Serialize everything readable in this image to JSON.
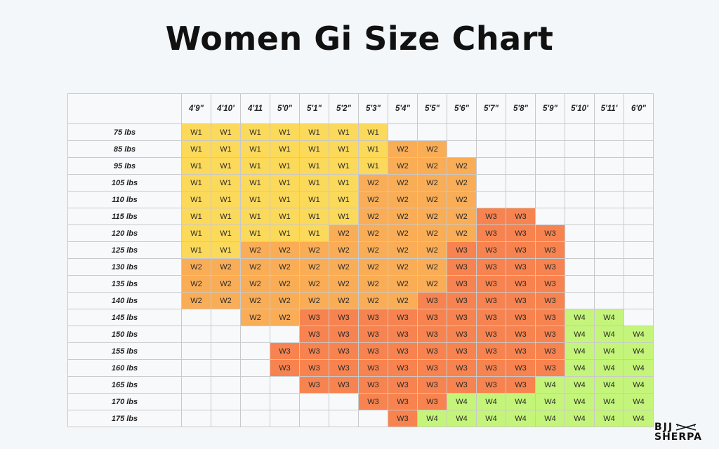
{
  "title": "Women Gi Size Chart",
  "logo": {
    "line1": "BJJ",
    "line2": "SHERPA"
  },
  "colors": {
    "W1": "#fbd95a",
    "W2": "#f9ad57",
    "W3": "#f78450",
    "W4": "#c4f57a"
  },
  "heights": [
    "4'9\"",
    "4'10'",
    "4'11",
    "5'0\"",
    "5'1\"",
    "5'2\"",
    "5'3\"",
    "5'4\"",
    "5'5\"",
    "5'6\"",
    "5'7\"",
    "5'8\"",
    "5'9\"",
    "5'10'",
    "5'11'",
    "6'0\""
  ],
  "rows": [
    {
      "weight": "75 lbs",
      "cells": [
        "W1",
        "W1",
        "W1",
        "W1",
        "W1",
        "W1",
        "W1",
        "",
        "",
        "",
        "",
        "",
        "",
        "",
        "",
        ""
      ]
    },
    {
      "weight": "85 lbs",
      "cells": [
        "W1",
        "W1",
        "W1",
        "W1",
        "W1",
        "W1",
        "W1",
        "W2",
        "W2",
        "",
        "",
        "",
        "",
        "",
        "",
        ""
      ]
    },
    {
      "weight": "95 lbs",
      "cells": [
        "W1",
        "W1",
        "W1",
        "W1",
        "W1",
        "W1",
        "W1",
        "W2",
        "W2",
        "W2",
        "",
        "",
        "",
        "",
        "",
        ""
      ]
    },
    {
      "weight": "105 lbs",
      "cells": [
        "W1",
        "W1",
        "W1",
        "W1",
        "W1",
        "W1",
        "W2",
        "W2",
        "W2",
        "W2",
        "",
        "",
        "",
        "",
        "",
        ""
      ]
    },
    {
      "weight": "110 lbs",
      "cells": [
        "W1",
        "W1",
        "W1",
        "W1",
        "W1",
        "W1",
        "W2",
        "W2",
        "W2",
        "W2",
        "",
        "",
        "",
        "",
        "",
        ""
      ]
    },
    {
      "weight": "115 lbs",
      "cells": [
        "W1",
        "W1",
        "W1",
        "W1",
        "W1",
        "W1",
        "W2",
        "W2",
        "W2",
        "W2",
        "W3",
        "W3",
        "",
        "",
        "",
        ""
      ]
    },
    {
      "weight": "120 lbs",
      "cells": [
        "W1",
        "W1",
        "W1",
        "W1",
        "W1",
        "W2",
        "W2",
        "W2",
        "W2",
        "W2",
        "W3",
        "W3",
        "W3",
        "",
        "",
        ""
      ]
    },
    {
      "weight": "125 lbs",
      "cells": [
        "W1",
        "W1",
        "W2",
        "W2",
        "W2",
        "W2",
        "W2",
        "W2",
        "W2",
        "W3",
        "W3",
        "W3",
        "W3",
        "",
        "",
        ""
      ]
    },
    {
      "weight": "130 lbs",
      "cells": [
        "W2",
        "W2",
        "W2",
        "W2",
        "W2",
        "W2",
        "W2",
        "W2",
        "W2",
        "W3",
        "W3",
        "W3",
        "W3",
        "",
        "",
        ""
      ]
    },
    {
      "weight": "135 lbs",
      "cells": [
        "W2",
        "W2",
        "W2",
        "W2",
        "W2",
        "W2",
        "W2",
        "W2",
        "W2",
        "W3",
        "W3",
        "W3",
        "W3",
        "",
        "",
        ""
      ]
    },
    {
      "weight": "140 lbs",
      "cells": [
        "W2",
        "W2",
        "W2",
        "W2",
        "W2",
        "W2",
        "W2",
        "W2",
        "W3",
        "W3",
        "W3",
        "W3",
        "W3",
        "",
        "",
        ""
      ]
    },
    {
      "weight": "145 lbs",
      "cells": [
        "",
        "",
        "W2",
        "W2",
        "W3",
        "W3",
        "W3",
        "W3",
        "W3",
        "W3",
        "W3",
        "W3",
        "W3",
        "W4",
        "W4",
        ""
      ]
    },
    {
      "weight": "150 lbs",
      "cells": [
        "",
        "",
        "",
        "",
        "W3",
        "W3",
        "W3",
        "W3",
        "W3",
        "W3",
        "W3",
        "W3",
        "W3",
        "W4",
        "W4",
        "W4"
      ]
    },
    {
      "weight": "155 lbs",
      "cells": [
        "",
        "",
        "",
        "W3",
        "W3",
        "W3",
        "W3",
        "W3",
        "W3",
        "W3",
        "W3",
        "W3",
        "W3",
        "W4",
        "W4",
        "W4"
      ]
    },
    {
      "weight": "160 lbs",
      "cells": [
        "",
        "",
        "",
        "W3",
        "W3",
        "W3",
        "W3",
        "W3",
        "W3",
        "W3",
        "W3",
        "W3",
        "W3",
        "W4",
        "W4",
        "W4"
      ]
    },
    {
      "weight": "165 lbs",
      "cells": [
        "",
        "",
        "",
        "",
        "W3",
        "W3",
        "W3",
        "W3",
        "W3",
        "W3",
        "W3",
        "W3",
        "W4",
        "W4",
        "W4",
        "W4"
      ]
    },
    {
      "weight": "170 lbs",
      "cells": [
        "",
        "",
        "",
        "",
        "",
        "",
        "W3",
        "W3",
        "W3",
        "W4",
        "W4",
        "W4",
        "W4",
        "W4",
        "W4",
        "W4"
      ]
    },
    {
      "weight": "175 lbs",
      "cells": [
        "",
        "",
        "",
        "",
        "",
        "",
        "",
        "W3",
        "W4",
        "W4",
        "W4",
        "W4",
        "W4",
        "W4",
        "W4",
        "W4"
      ]
    }
  ]
}
